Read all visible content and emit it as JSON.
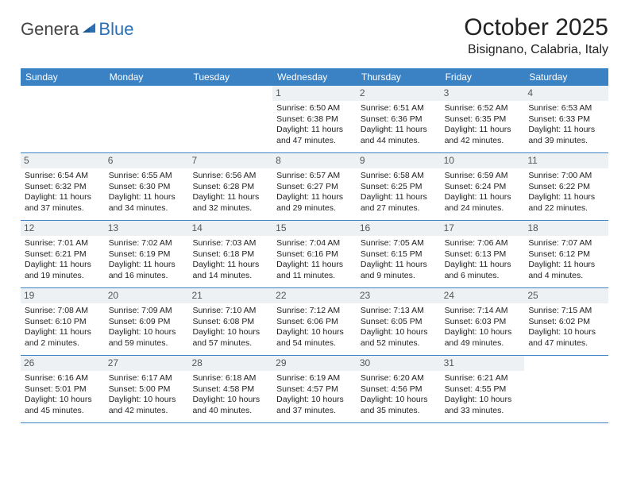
{
  "logo": {
    "part1": "Genera",
    "part2": "Blue"
  },
  "title": "October 2025",
  "subtitle": "Bisignano, Calabria, Italy",
  "colors": {
    "header_bg": "#3b82c4",
    "header_text": "#ffffff",
    "daynum_bg": "#eef1f3",
    "daynum_text": "#555555",
    "border": "#3b82c4",
    "logo_blue": "#2a70b8",
    "logo_gray": "#444444",
    "body_text": "#222222",
    "page_bg": "#ffffff"
  },
  "day_headers": [
    "Sunday",
    "Monday",
    "Tuesday",
    "Wednesday",
    "Thursday",
    "Friday",
    "Saturday"
  ],
  "weeks": [
    [
      null,
      null,
      null,
      {
        "n": "1",
        "sunrise": "6:50 AM",
        "sunset": "6:38 PM",
        "dl_h": "11",
        "dl_m": "47"
      },
      {
        "n": "2",
        "sunrise": "6:51 AM",
        "sunset": "6:36 PM",
        "dl_h": "11",
        "dl_m": "44"
      },
      {
        "n": "3",
        "sunrise": "6:52 AM",
        "sunset": "6:35 PM",
        "dl_h": "11",
        "dl_m": "42"
      },
      {
        "n": "4",
        "sunrise": "6:53 AM",
        "sunset": "6:33 PM",
        "dl_h": "11",
        "dl_m": "39"
      }
    ],
    [
      {
        "n": "5",
        "sunrise": "6:54 AM",
        "sunset": "6:32 PM",
        "dl_h": "11",
        "dl_m": "37"
      },
      {
        "n": "6",
        "sunrise": "6:55 AM",
        "sunset": "6:30 PM",
        "dl_h": "11",
        "dl_m": "34"
      },
      {
        "n": "7",
        "sunrise": "6:56 AM",
        "sunset": "6:28 PM",
        "dl_h": "11",
        "dl_m": "32"
      },
      {
        "n": "8",
        "sunrise": "6:57 AM",
        "sunset": "6:27 PM",
        "dl_h": "11",
        "dl_m": "29"
      },
      {
        "n": "9",
        "sunrise": "6:58 AM",
        "sunset": "6:25 PM",
        "dl_h": "11",
        "dl_m": "27"
      },
      {
        "n": "10",
        "sunrise": "6:59 AM",
        "sunset": "6:24 PM",
        "dl_h": "11",
        "dl_m": "24"
      },
      {
        "n": "11",
        "sunrise": "7:00 AM",
        "sunset": "6:22 PM",
        "dl_h": "11",
        "dl_m": "22"
      }
    ],
    [
      {
        "n": "12",
        "sunrise": "7:01 AM",
        "sunset": "6:21 PM",
        "dl_h": "11",
        "dl_m": "19"
      },
      {
        "n": "13",
        "sunrise": "7:02 AM",
        "sunset": "6:19 PM",
        "dl_h": "11",
        "dl_m": "16"
      },
      {
        "n": "14",
        "sunrise": "7:03 AM",
        "sunset": "6:18 PM",
        "dl_h": "11",
        "dl_m": "14"
      },
      {
        "n": "15",
        "sunrise": "7:04 AM",
        "sunset": "6:16 PM",
        "dl_h": "11",
        "dl_m": "11"
      },
      {
        "n": "16",
        "sunrise": "7:05 AM",
        "sunset": "6:15 PM",
        "dl_h": "11",
        "dl_m": "9"
      },
      {
        "n": "17",
        "sunrise": "7:06 AM",
        "sunset": "6:13 PM",
        "dl_h": "11",
        "dl_m": "6"
      },
      {
        "n": "18",
        "sunrise": "7:07 AM",
        "sunset": "6:12 PM",
        "dl_h": "11",
        "dl_m": "4"
      }
    ],
    [
      {
        "n": "19",
        "sunrise": "7:08 AM",
        "sunset": "6:10 PM",
        "dl_h": "11",
        "dl_m": "2"
      },
      {
        "n": "20",
        "sunrise": "7:09 AM",
        "sunset": "6:09 PM",
        "dl_h": "10",
        "dl_m": "59"
      },
      {
        "n": "21",
        "sunrise": "7:10 AM",
        "sunset": "6:08 PM",
        "dl_h": "10",
        "dl_m": "57"
      },
      {
        "n": "22",
        "sunrise": "7:12 AM",
        "sunset": "6:06 PM",
        "dl_h": "10",
        "dl_m": "54"
      },
      {
        "n": "23",
        "sunrise": "7:13 AM",
        "sunset": "6:05 PM",
        "dl_h": "10",
        "dl_m": "52"
      },
      {
        "n": "24",
        "sunrise": "7:14 AM",
        "sunset": "6:03 PM",
        "dl_h": "10",
        "dl_m": "49"
      },
      {
        "n": "25",
        "sunrise": "7:15 AM",
        "sunset": "6:02 PM",
        "dl_h": "10",
        "dl_m": "47"
      }
    ],
    [
      {
        "n": "26",
        "sunrise": "6:16 AM",
        "sunset": "5:01 PM",
        "dl_h": "10",
        "dl_m": "45"
      },
      {
        "n": "27",
        "sunrise": "6:17 AM",
        "sunset": "5:00 PM",
        "dl_h": "10",
        "dl_m": "42"
      },
      {
        "n": "28",
        "sunrise": "6:18 AM",
        "sunset": "4:58 PM",
        "dl_h": "10",
        "dl_m": "40"
      },
      {
        "n": "29",
        "sunrise": "6:19 AM",
        "sunset": "4:57 PM",
        "dl_h": "10",
        "dl_m": "37"
      },
      {
        "n": "30",
        "sunrise": "6:20 AM",
        "sunset": "4:56 PM",
        "dl_h": "10",
        "dl_m": "35"
      },
      {
        "n": "31",
        "sunrise": "6:21 AM",
        "sunset": "4:55 PM",
        "dl_h": "10",
        "dl_m": "33"
      },
      null
    ]
  ],
  "labels": {
    "sunrise": "Sunrise:",
    "sunset": "Sunset:",
    "daylight_prefix": "Daylight:",
    "hours_word": "hours",
    "and_word": "and",
    "minutes_word": "minutes."
  }
}
